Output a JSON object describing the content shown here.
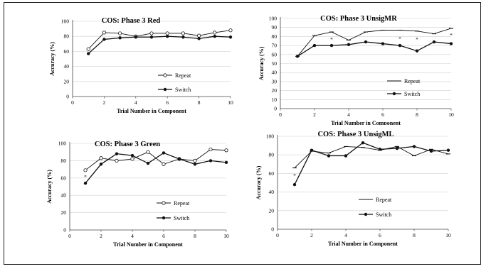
{
  "chart_data": [
    {
      "type": "line",
      "title": "COS: Phase 3 Red",
      "xlabel": "Trial Number in Component",
      "ylabel": "Accuracy (%)",
      "xlim": [
        0,
        10
      ],
      "ylim": [
        0,
        100
      ],
      "xticks": [
        0,
        2,
        4,
        6,
        8,
        10
      ],
      "yticks": [
        0,
        20,
        40,
        60,
        80,
        100
      ],
      "x": [
        1,
        2,
        3,
        4,
        5,
        6,
        7,
        8,
        9,
        10
      ],
      "series": [
        {
          "name": "Repeat",
          "marker": "open-circle",
          "values": [
            63,
            85,
            84,
            80,
            84,
            84,
            84,
            81,
            85,
            88
          ]
        },
        {
          "name": "Switch",
          "marker": "filled-circle",
          "values": [
            57,
            76,
            78,
            79,
            79,
            80,
            79,
            77,
            80,
            79
          ]
        }
      ],
      "legend": "bottom-right"
    },
    {
      "type": "line",
      "title": "COS: Phase 3 UnsigMR",
      "xlabel": "Trial Number in Component",
      "ylabel": "Accuracy (%)",
      "xlim": [
        0,
        10
      ],
      "ylim": [
        0,
        100
      ],
      "xticks": [
        0,
        2,
        4,
        6,
        8,
        10
      ],
      "yticks": [
        0,
        10,
        20,
        30,
        40,
        50,
        60,
        70,
        80,
        90,
        100
      ],
      "x": [
        1,
        2,
        3,
        4,
        5,
        6,
        7,
        8,
        9,
        10
      ],
      "series": [
        {
          "name": "Repeat",
          "marker": "dash",
          "values": [
            58,
            81,
            85,
            76,
            85,
            87,
            87,
            86,
            83,
            89
          ]
        },
        {
          "name": "Switch",
          "marker": "filled-circle",
          "values": [
            58,
            70,
            70,
            71,
            74,
            72,
            70,
            64,
            74,
            72
          ]
        }
      ],
      "annotations": [
        {
          "text": "*",
          "x": 3,
          "y": 77
        },
        {
          "text": "*",
          "x": 7,
          "y": 78
        },
        {
          "text": "*",
          "x": 8,
          "y": 77
        },
        {
          "text": "*",
          "x": 10,
          "y": 82
        }
      ],
      "legend": "bottom-right"
    },
    {
      "type": "line",
      "title": "COS: Phase 3 Green",
      "xlabel": "Trial Number in Component",
      "ylabel": "Accuracy (%)",
      "xlim": [
        0,
        10
      ],
      "ylim": [
        0,
        100
      ],
      "xticks": [
        0,
        2,
        4,
        6,
        8,
        10
      ],
      "yticks": [
        0,
        20,
        40,
        60,
        80,
        100
      ],
      "x": [
        1,
        2,
        3,
        4,
        5,
        6,
        7,
        8,
        9,
        10
      ],
      "series": [
        {
          "name": "Repeat",
          "marker": "open-circle",
          "values": [
            69,
            83,
            80,
            82,
            90,
            76,
            82,
            80,
            93,
            92
          ]
        },
        {
          "name": "Switch",
          "marker": "filled-circle",
          "values": [
            54,
            76,
            88,
            86,
            77,
            89,
            82,
            76,
            80,
            78
          ]
        }
      ],
      "annotations": [
        {
          "text": "*",
          "x": 1,
          "y": 62
        }
      ],
      "legend": "bottom-right"
    },
    {
      "type": "line",
      "title": "COS: Phase 3 UnsigML",
      "xlabel": "Trial Number in Component",
      "ylabel": "Accuracy (%)",
      "xlim": [
        0,
        10
      ],
      "ylim": [
        0,
        100
      ],
      "xticks": [
        0,
        2,
        4,
        6,
        8,
        10
      ],
      "yticks": [
        0,
        20,
        40,
        60,
        80,
        100
      ],
      "x": [
        1,
        2,
        3,
        4,
        5,
        6,
        7,
        8,
        9,
        10
      ],
      "series": [
        {
          "name": "Repeat",
          "marker": "dash",
          "values": [
            66,
            84,
            82,
            89,
            88,
            85,
            89,
            79,
            86,
            81
          ]
        },
        {
          "name": "Switch",
          "marker": "filled-circle",
          "values": [
            48,
            85,
            79,
            79,
            93,
            86,
            87,
            89,
            84,
            85
          ]
        }
      ],
      "annotations": [
        {
          "text": "*",
          "x": 1,
          "y": 58
        }
      ],
      "legend": "bottom-right"
    }
  ]
}
